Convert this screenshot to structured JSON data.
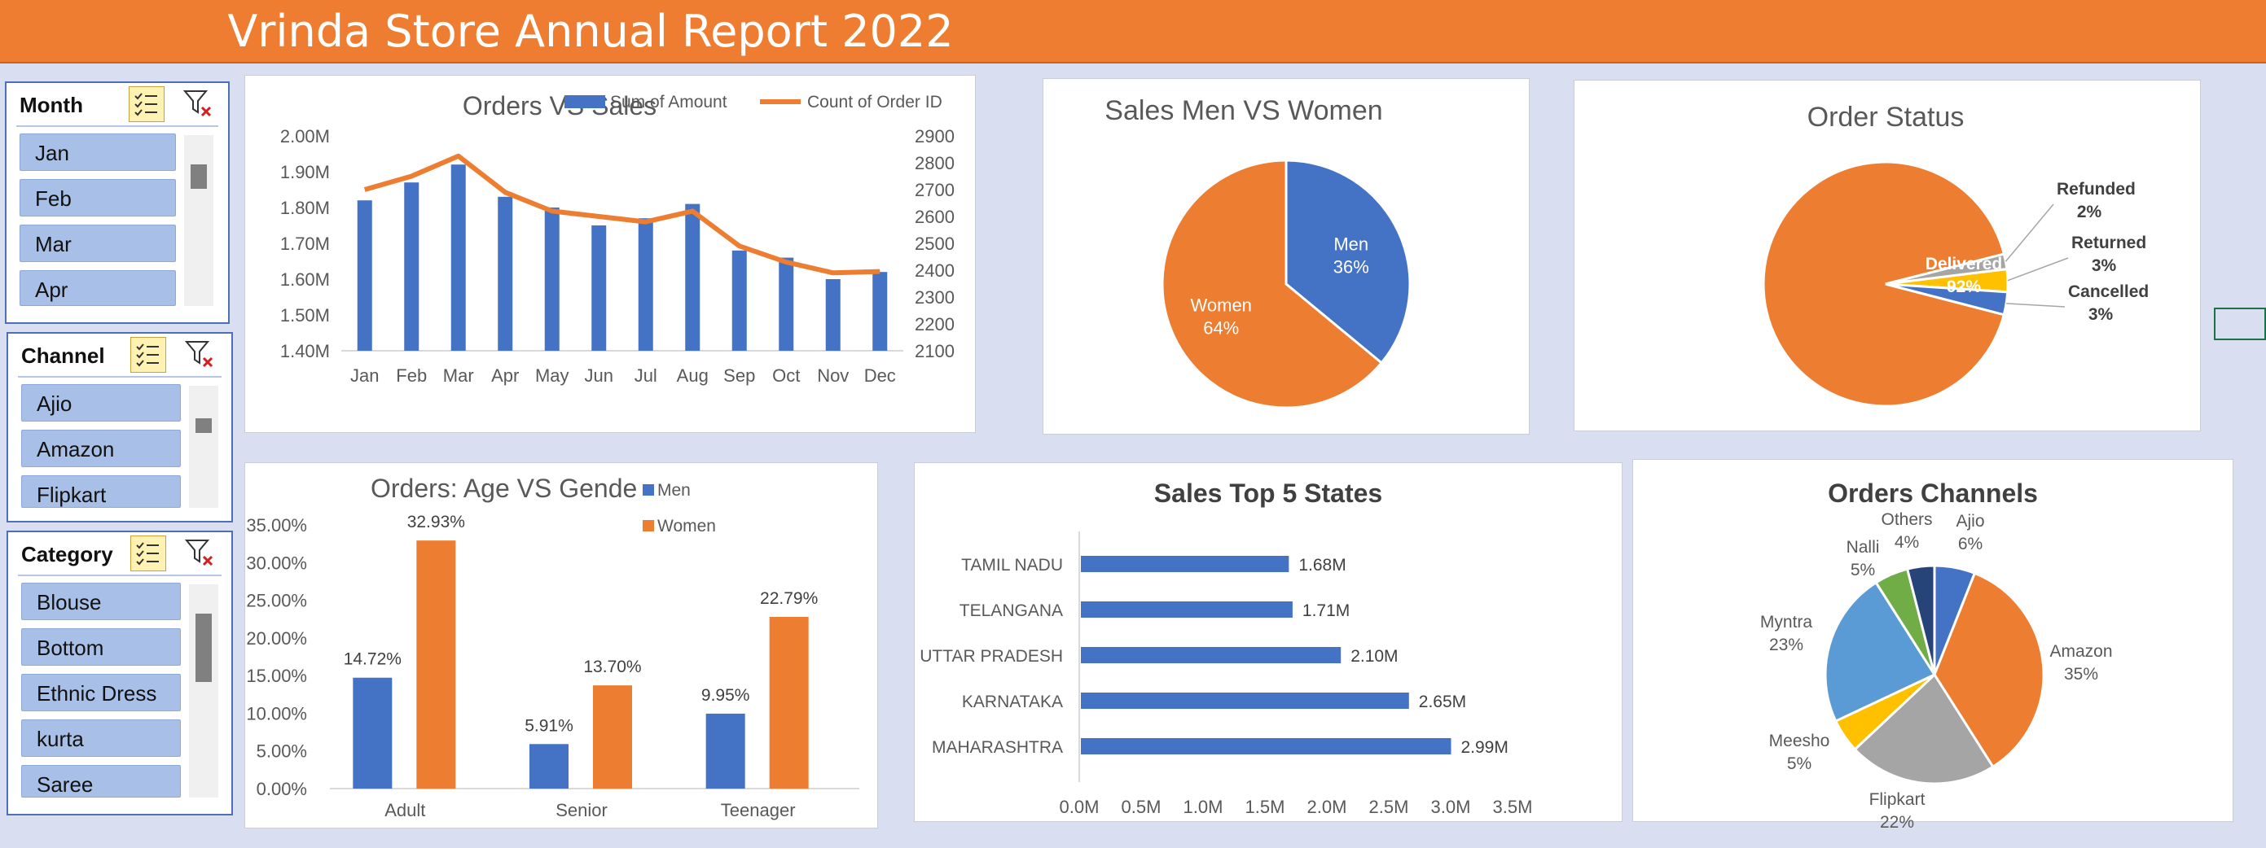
{
  "report": {
    "title": "Vrinda Store Annual Report 2022"
  },
  "slicers": {
    "month": {
      "title": "Month",
      "items": [
        "Jan",
        "Feb",
        "Mar",
        "Apr"
      ]
    },
    "channel": {
      "title": "Channel",
      "items": [
        "Ajio",
        "Amazon",
        "Flipkart"
      ]
    },
    "category": {
      "title": "Category",
      "items": [
        "Blouse",
        "Bottom",
        "Ethnic Dress",
        "kurta",
        "Saree"
      ]
    }
  },
  "colors": {
    "blue": "#4472c4",
    "orange": "#ed7d31",
    "gray": "#a5a5a5",
    "yellow": "#ffc000",
    "lightblue": "#5b9bd5",
    "green": "#70ad47",
    "navy": "#264478"
  },
  "chart_data": [
    {
      "id": "orders_vs_sales",
      "type": "bar",
      "title": "Orders VS Sales",
      "categories": [
        "Jan",
        "Feb",
        "Mar",
        "Apr",
        "May",
        "Jun",
        "Jul",
        "Aug",
        "Sep",
        "Oct",
        "Nov",
        "Dec"
      ],
      "series": [
        {
          "name": "Sum of Amount",
          "type": "bar",
          "axis": "left",
          "values": [
            1.82,
            1.87,
            1.92,
            1.83,
            1.8,
            1.75,
            1.77,
            1.81,
            1.68,
            1.66,
            1.6,
            1.62
          ]
        },
        {
          "name": "Count of Order ID",
          "type": "line",
          "axis": "right",
          "values": [
            2700,
            2750,
            2825,
            2690,
            2620,
            2600,
            2580,
            2620,
            2490,
            2430,
            2390,
            2395
          ]
        }
      ],
      "left_ticks": [
        "2.00M",
        "1.90M",
        "1.80M",
        "1.70M",
        "1.60M",
        "1.50M",
        "1.40M"
      ],
      "right_ticks": [
        "2900",
        "2800",
        "2700",
        "2600",
        "2500",
        "2400",
        "2300",
        "2200",
        "2100"
      ],
      "ylim": [
        1.4,
        2.0
      ],
      "y2lim": [
        2100,
        2900
      ],
      "legend": "top"
    },
    {
      "id": "sales_men_women",
      "type": "pie",
      "title": "Sales Men VS Women",
      "slices": [
        {
          "name": "Men",
          "label": "36%",
          "value": 36
        },
        {
          "name": "Women",
          "label": "64%",
          "value": 64
        }
      ]
    },
    {
      "id": "order_status",
      "type": "pie",
      "title": "Order Status",
      "slices": [
        {
          "name": "Delivered",
          "label": "92%",
          "value": 92
        },
        {
          "name": "Refunded",
          "label": "2%",
          "value": 2
        },
        {
          "name": "Returned",
          "label": "3%",
          "value": 3
        },
        {
          "name": "Cancelled",
          "label": "3%",
          "value": 3
        }
      ]
    },
    {
      "id": "age_vs_gender",
      "type": "bar",
      "title": "Orders: Age VS Gende",
      "categories": [
        "Adult",
        "Senior",
        "Teenager"
      ],
      "series": [
        {
          "name": "Men",
          "values": [
            14.72,
            5.91,
            9.95
          ],
          "labels": [
            "14.72%",
            "5.91%",
            "9.95%"
          ]
        },
        {
          "name": "Women",
          "values": [
            32.93,
            13.7,
            22.79
          ],
          "labels": [
            "32.93%",
            "13.70%",
            "22.79%"
          ]
        }
      ],
      "y_ticks": [
        "35.00%",
        "30.00%",
        "25.00%",
        "20.00%",
        "15.00%",
        "10.00%",
        "5.00%",
        "0.00%"
      ],
      "ylim": [
        0,
        35
      ],
      "legend": "top-right"
    },
    {
      "id": "top_states",
      "type": "bar",
      "orientation": "horizontal",
      "title": "Sales Top 5 States",
      "categories": [
        "TAMIL NADU",
        "TELANGANA",
        "UTTAR PRADESH",
        "KARNATAKA",
        "MAHARASHTRA"
      ],
      "values": [
        1.68,
        1.71,
        2.1,
        2.65,
        2.99
      ],
      "labels": [
        "1.68M",
        "1.71M",
        "2.10M",
        "2.65M",
        "2.99M"
      ],
      "x_ticks": [
        "0.0M",
        "0.5M",
        "1.0M",
        "1.5M",
        "2.0M",
        "2.5M",
        "3.0M",
        "3.5M"
      ],
      "xlim": [
        0,
        3.5
      ]
    },
    {
      "id": "order_channels",
      "type": "pie",
      "title": "Orders Channels",
      "slices": [
        {
          "name": "Ajio",
          "label": "6%",
          "value": 6
        },
        {
          "name": "Amazon",
          "label": "35%",
          "value": 35
        },
        {
          "name": "Flipkart",
          "label": "22%",
          "value": 22
        },
        {
          "name": "Meesho",
          "label": "5%",
          "value": 5
        },
        {
          "name": "Myntra",
          "label": "23%",
          "value": 23
        },
        {
          "name": "Nalli",
          "label": "5%",
          "value": 5
        },
        {
          "name": "Others",
          "label": "4%",
          "value": 4
        }
      ]
    }
  ]
}
